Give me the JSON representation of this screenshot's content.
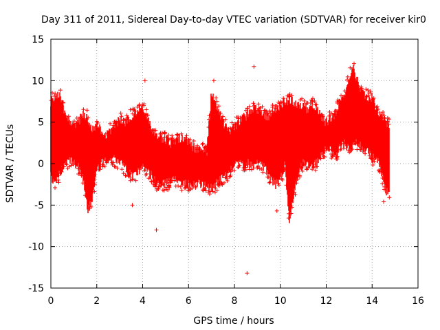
{
  "chart_data": {
    "type": "scatter",
    "title": "Day 311 of 2011, Sidereal Day-to-day VTEC variation (SDTVAR) for receiver kir0",
    "xlabel": "GPS time / hours",
    "ylabel": "SDTVAR / TECUs",
    "xlim": [
      0,
      16
    ],
    "ylim": [
      -15,
      15
    ],
    "xticks": [
      0,
      2,
      4,
      6,
      8,
      10,
      12,
      14,
      16
    ],
    "xtick_labels": [
      "0",
      "2",
      "4",
      "6",
      "8",
      "10",
      "12",
      "14",
      "16"
    ],
    "yticks": [
      -15,
      -10,
      -5,
      0,
      5,
      10,
      15
    ],
    "ytick_labels": [
      "-15",
      "-10",
      "-5",
      "0",
      "5",
      "10",
      "15"
    ],
    "grid": true,
    "marker": "+",
    "color": "#ff0000",
    "series": [
      {
        "name": "SDTVAR",
        "envelope_note": "dense point cloud approximated by upper/lower bounds vs time",
        "x": [
          0.0,
          0.2,
          0.4,
          0.6,
          0.8,
          1.0,
          1.2,
          1.4,
          1.6,
          1.8,
          2.0,
          2.2,
          2.4,
          2.6,
          2.8,
          3.0,
          3.2,
          3.4,
          3.6,
          3.8,
          4.0,
          4.2,
          4.4,
          4.6,
          4.8,
          5.0,
          5.2,
          5.4,
          5.6,
          5.8,
          6.0,
          6.2,
          6.4,
          6.6,
          6.8,
          7.0,
          7.2,
          7.4,
          7.6,
          7.8,
          8.0,
          8.2,
          8.4,
          8.6,
          8.8,
          9.0,
          9.2,
          9.4,
          9.6,
          9.8,
          10.0,
          10.2,
          10.4,
          10.6,
          10.8,
          11.0,
          11.2,
          11.4,
          11.6,
          11.8,
          12.0,
          12.2,
          12.4,
          12.6,
          12.8,
          13.0,
          13.2,
          13.4,
          13.6,
          13.8,
          14.0,
          14.2,
          14.4,
          14.6,
          14.75
        ],
        "upper": [
          7.5,
          8.0,
          8.5,
          6.0,
          5.0,
          4.5,
          5.0,
          6.0,
          5.5,
          4.0,
          4.5,
          4.0,
          3.5,
          4.0,
          4.5,
          5.5,
          5.0,
          5.5,
          6.0,
          6.5,
          7.0,
          5.5,
          4.0,
          3.5,
          3.0,
          3.0,
          2.5,
          2.5,
          3.0,
          3.0,
          2.5,
          2.0,
          1.5,
          2.0,
          1.5,
          8.5,
          7.0,
          5.5,
          4.5,
          4.0,
          4.5,
          5.0,
          5.5,
          6.0,
          6.5,
          6.5,
          6.0,
          5.5,
          6.0,
          6.5,
          7.0,
          7.5,
          7.5,
          7.5,
          7.0,
          7.0,
          6.5,
          7.0,
          6.5,
          5.5,
          5.0,
          5.5,
          6.0,
          7.5,
          8.5,
          10.5,
          11.5,
          9.5,
          8.5,
          8.0,
          8.0,
          6.5,
          5.5,
          5.0,
          4.5
        ],
        "lower": [
          -1.5,
          -2.5,
          -1.0,
          0.0,
          0.5,
          0.0,
          -0.5,
          -1.5,
          -5.5,
          -4.5,
          -1.0,
          0.0,
          0.5,
          0.5,
          0.5,
          0.0,
          -0.5,
          -1.0,
          -1.5,
          -1.0,
          -0.5,
          -1.0,
          -1.5,
          -2.5,
          -2.5,
          -2.5,
          -2.0,
          -2.0,
          -2.5,
          -2.5,
          -2.5,
          -2.5,
          -2.5,
          -2.5,
          -3.0,
          -3.0,
          -2.5,
          -2.0,
          -1.5,
          -1.0,
          0.0,
          0.0,
          0.0,
          0.0,
          0.0,
          0.0,
          0.0,
          -1.0,
          -2.0,
          -2.5,
          -2.0,
          0.0,
          -7.0,
          -3.5,
          -1.0,
          0.0,
          0.0,
          0.0,
          0.0,
          1.0,
          2.0,
          1.5,
          0.5,
          2.0,
          2.5,
          1.5,
          2.5,
          2.5,
          1.5,
          2.0,
          0.5,
          1.0,
          -1.0,
          -3.5,
          -3.5
        ]
      }
    ],
    "outliers": [
      {
        "x": 8.85,
        "y": 11.7
      },
      {
        "x": 8.55,
        "y": -13.2
      },
      {
        "x": 4.6,
        "y": -8.0
      },
      {
        "x": 3.55,
        "y": -5.0
      },
      {
        "x": 9.85,
        "y": -5.7
      },
      {
        "x": 14.5,
        "y": -4.6
      },
      {
        "x": 4.1,
        "y": 10.0
      },
      {
        "x": 7.1,
        "y": 10.0
      }
    ]
  }
}
